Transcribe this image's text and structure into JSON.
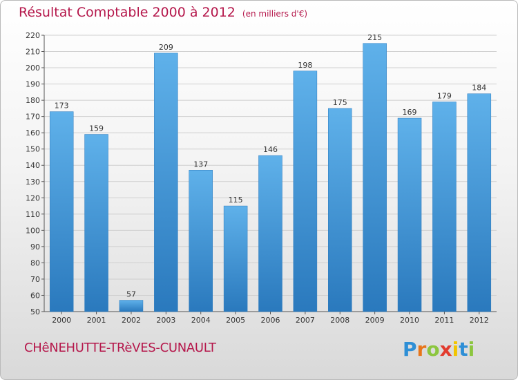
{
  "chart_data": {
    "type": "bar",
    "title": "Résultat Comptable 2000 à 2012",
    "subtitle": "(en milliers d'€)",
    "categories": [
      "2000",
      "2001",
      "2002",
      "2003",
      "2004",
      "2005",
      "2006",
      "2007",
      "2008",
      "2009",
      "2010",
      "2011",
      "2012"
    ],
    "values": [
      173,
      159,
      57,
      209,
      137,
      115,
      146,
      198,
      175,
      215,
      169,
      179,
      184
    ],
    "ylim": [
      50,
      220
    ],
    "yticks": [
      50,
      60,
      70,
      80,
      90,
      100,
      110,
      120,
      130,
      140,
      150,
      160,
      170,
      180,
      190,
      200,
      210,
      220
    ],
    "xlabel": "",
    "ylabel": "",
    "grid": true,
    "bar_color": "#3f93d6"
  },
  "footer": {
    "commune": "CHêNEHUTTE-TRèVES-CUNAULT"
  },
  "brand": {
    "letters": [
      "P",
      "r",
      "o",
      "x",
      "i",
      "t",
      "i"
    ],
    "colors": [
      "#2e8fd6",
      "#e8751a",
      "#8cc63f",
      "#e23b2e",
      "#f2c500",
      "#2e8fd6",
      "#8cc63f"
    ]
  }
}
